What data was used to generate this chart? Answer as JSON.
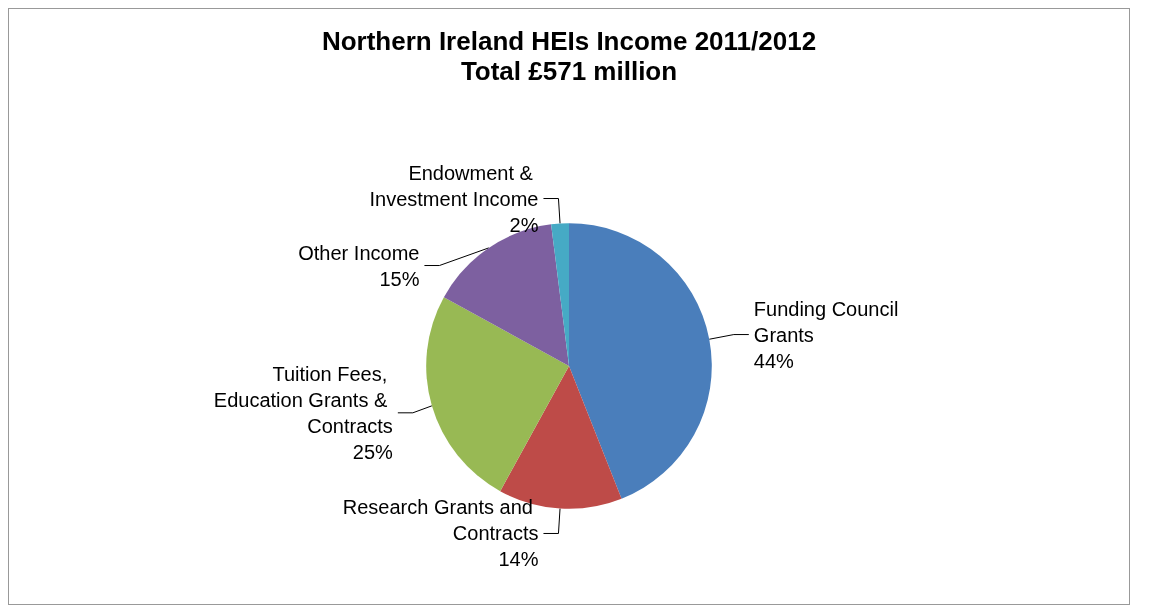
{
  "chart_data": {
    "type": "pie",
    "title": "Northern Ireland HEIs Income 2011/2012",
    "subtitle": "Total £571 million",
    "categories": [
      "Funding Council Grants",
      "Research Grants and Contracts",
      "Tuition Fees, Education Grants & Contracts",
      "Other Income",
      "Endowment & Investment Income"
    ],
    "values": [
      44,
      14,
      25,
      15,
      2
    ],
    "colors": [
      "#4a7ebb",
      "#be4b48",
      "#98b954",
      "#7d60a0",
      "#46aac5"
    ],
    "value_labels": [
      "44%",
      "14%",
      "25%",
      "15%",
      "2%"
    ],
    "legend": false
  }
}
